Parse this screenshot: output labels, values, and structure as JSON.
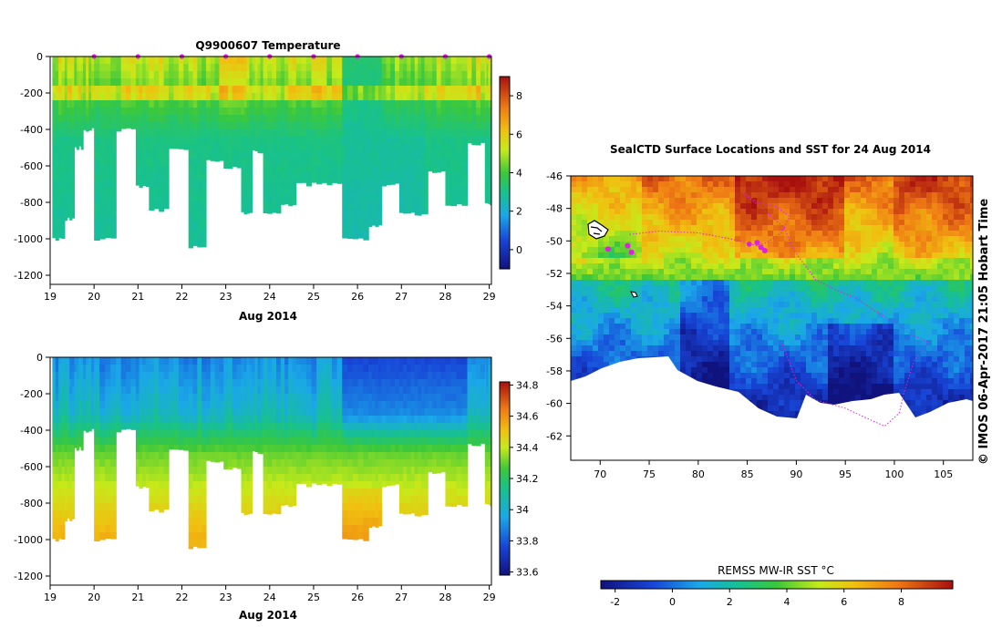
{
  "chart_data": [
    {
      "type": "heatmap",
      "title": "Q9900607  Temperature",
      "xlabel": "Aug 2014",
      "ylabel": "",
      "xlim": [
        19,
        29.05
      ],
      "ylim": [
        -1250,
        0
      ],
      "x_ticks": [
        "19",
        "20",
        "21",
        "22",
        "23",
        "24",
        "25",
        "26",
        "27",
        "28",
        "29"
      ],
      "y_ticks": [
        "0",
        "-200",
        "-400",
        "-600",
        "-800",
        "-1000",
        "-1200"
      ],
      "colorbar": {
        "min": -1,
        "max": 9,
        "ticks": [
          "0",
          "2",
          "4",
          "6",
          "8"
        ]
      },
      "surface_markers": [
        20,
        21,
        22,
        23,
        24,
        25,
        26,
        27,
        28,
        29
      ]
    },
    {
      "type": "heatmap",
      "title": "",
      "xlabel": "Aug 2014",
      "ylabel": "",
      "xlim": [
        19,
        29.05
      ],
      "ylim": [
        -1250,
        0
      ],
      "x_ticks": [
        "19",
        "20",
        "21",
        "22",
        "23",
        "24",
        "25",
        "26",
        "27",
        "28",
        "29"
      ],
      "y_ticks": [
        "0",
        "-200",
        "-400",
        "-600",
        "-800",
        "-1000",
        "-1200"
      ],
      "colorbar": {
        "min": 33.58,
        "max": 34.82,
        "ticks": [
          "33.6",
          "33.8",
          "34",
          "34.2",
          "34.4",
          "34.6",
          "34.8"
        ]
      }
    },
    {
      "type": "heatmap",
      "title": "SealCTD Surface Locations and SST for 24 Aug 2014",
      "xlabel": "",
      "ylabel": "",
      "xlim": [
        67,
        108
      ],
      "ylim": [
        -63.5,
        -46
      ],
      "x_ticks": [
        "70",
        "75",
        "80",
        "85",
        "90",
        "95",
        "100",
        "105"
      ],
      "y_ticks": [
        "-46",
        "-48",
        "-50",
        "-52",
        "-54",
        "-56",
        "-58",
        "-60",
        "-62"
      ],
      "credit": "© IMOS 06-Apr-2017 21:05 Hobart Time",
      "colorbar": {
        "label": "REMSS MW-IR SST °C",
        "min": -2.5,
        "max": 9.8,
        "ticks": [
          "-2",
          "0",
          "2",
          "4",
          "6",
          "8"
        ]
      }
    }
  ]
}
